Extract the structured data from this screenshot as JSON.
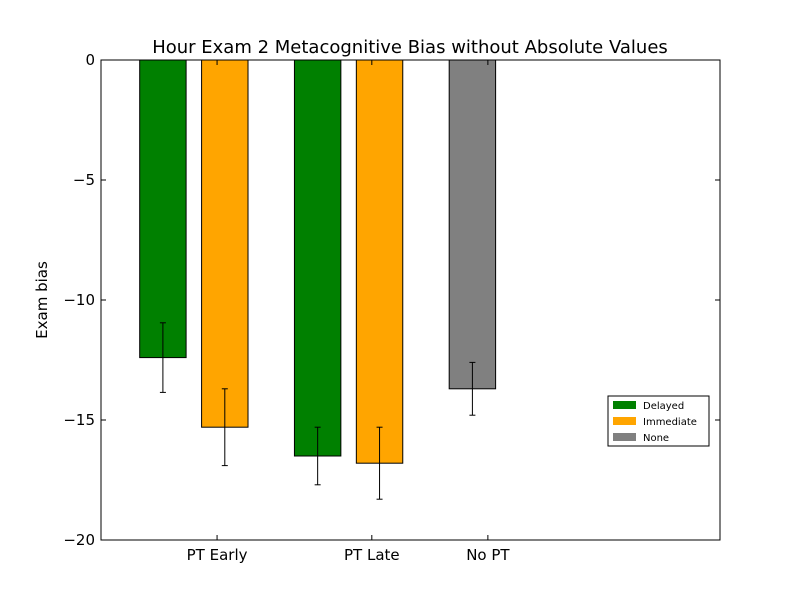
{
  "chart_data": {
    "type": "bar",
    "title": "Hour Exam 2 Metacognitive Bias without Absolute Values",
    "xlabel": "",
    "ylabel": "Exam bias",
    "ylim": [
      -20,
      0
    ],
    "yticks": [
      0,
      -5,
      -10,
      -15,
      -20
    ],
    "ytick_labels": [
      "0",
      "−5",
      "−10",
      "−15",
      "−20"
    ],
    "categories": [
      "PT Early",
      "PT Late",
      "No PT"
    ],
    "xlim": [
      0,
      16
    ],
    "category_x": [
      3,
      7,
      10
    ],
    "bar_width": 1.2,
    "bars": [
      {
        "category": "PT Early",
        "series": "Delayed",
        "x_left": 1,
        "value": -12.4,
        "err": 1.45
      },
      {
        "category": "PT Early",
        "series": "Immediate",
        "x_left": 2.6,
        "value": -15.3,
        "err": 1.6
      },
      {
        "category": "PT Late",
        "series": "Delayed",
        "x_left": 5,
        "value": -16.5,
        "err": 1.2
      },
      {
        "category": "PT Late",
        "series": "Immediate",
        "x_left": 6.6,
        "value": -16.8,
        "err": 1.5
      },
      {
        "category": "No PT",
        "series": "None",
        "x_left": 9,
        "value": -13.7,
        "err": 1.1
      }
    ],
    "series": [
      {
        "name": "Delayed",
        "color": "#008000"
      },
      {
        "name": "Immediate",
        "color": "#FFA500"
      },
      {
        "name": "None",
        "color": "#808080"
      }
    ],
    "legend_position": "lower-right",
    "grid": false
  }
}
